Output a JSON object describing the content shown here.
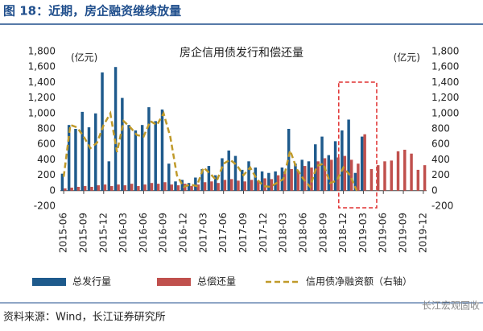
{
  "header": "图 18：近期，房企融资继续放量",
  "source": "资料来源：Wind，长江证券研究所",
  "watermark": "长江宏观固收",
  "chart_data": {
    "type": "bar",
    "title": "房企信用债发行和偿还量",
    "y_label": "(亿元)",
    "y2_label": "(亿元)",
    "categories": [
      "2015-06",
      null,
      null,
      "2015-09",
      null,
      null,
      "2015-12",
      null,
      null,
      "2016-03",
      null,
      null,
      "2016-06",
      null,
      null,
      "2016-09",
      null,
      null,
      "2016-12",
      null,
      null,
      "2017-03",
      null,
      null,
      "2017-06",
      null,
      null,
      "2017-09",
      null,
      null,
      "2017-12",
      null,
      null,
      "2018-03",
      null,
      null,
      "2018-06",
      null,
      null,
      "2018-09",
      null,
      null,
      "2018-12",
      null,
      null,
      "2019-03",
      null,
      null,
      "2019-06",
      null,
      null,
      "2019-09",
      null,
      null,
      "2019-12"
    ],
    "series": [
      {
        "name": "总发行量",
        "color": "#1e5a8c",
        "values": [
          220,
          850,
          800,
          1020,
          820,
          1000,
          1530,
          380,
          1600,
          1200,
          850,
          780,
          850,
          1080,
          900,
          1050,
          350,
          120,
          140,
          100,
          170,
          280,
          320,
          200,
          420,
          520,
          450,
          270,
          380,
          300,
          250,
          230,
          250,
          300,
          800,
          350,
          400,
          380,
          600,
          700,
          460,
          640,
          780,
          920,
          230,
          700,
          null,
          null,
          null,
          null,
          null,
          null,
          null,
          null,
          null
        ]
      },
      {
        "name": "总偿还量",
        "color": "#c0504d",
        "values": [
          30,
          40,
          50,
          60,
          50,
          70,
          80,
          60,
          80,
          70,
          90,
          60,
          80,
          100,
          90,
          110,
          80,
          70,
          90,
          60,
          80,
          110,
          120,
          100,
          140,
          150,
          130,
          120,
          140,
          130,
          160,
          150,
          200,
          250,
          280,
          260,
          320,
          300,
          380,
          420,
          400,
          430,
          450,
          400,
          350,
          730,
          280,
          330,
          380,
          390,
          510,
          530,
          480,
          270,
          330
        ]
      },
      {
        "name": "信用债净融资额（右轴）",
        "color": "#c09a2a",
        "type": "line",
        "axis": "y2",
        "dashed": true,
        "values": [
          180,
          850,
          820,
          700,
          550,
          620,
          850,
          1000,
          500,
          900,
          820,
          720,
          700,
          900,
          850,
          1000,
          700,
          200,
          50,
          80,
          60,
          300,
          220,
          130,
          350,
          400,
          330,
          200,
          300,
          150,
          60,
          50,
          100,
          150,
          520,
          280,
          150,
          50,
          320,
          350,
          100,
          130,
          300,
          200,
          0,
          null,
          null,
          null,
          null,
          null,
          null,
          null,
          null,
          null,
          null
        ]
      }
    ],
    "ylim": [
      -200,
      1800
    ],
    "yticks": [
      -200,
      0,
      200,
      400,
      600,
      800,
      {
        "value": 1000,
        "label": "1,000"
      },
      {
        "value": 1200,
        "label": "1,200"
      },
      {
        "value": 1400,
        "label": "1,400"
      },
      {
        "value": 1600,
        "label": "1,600"
      },
      {
        "value": 1800,
        "label": "1,800"
      }
    ],
    "y2lim": [
      -200,
      1800
    ],
    "y2ticks": [
      -200,
      0,
      200,
      400,
      600,
      800,
      {
        "value": 1000,
        "label": "1,000"
      },
      {
        "value": 1200,
        "label": "1,200"
      },
      {
        "value": 1400,
        "label": "1,400"
      },
      {
        "value": 1600,
        "label": "1,600"
      },
      {
        "value": 1800,
        "label": "1,800"
      }
    ],
    "grid": false,
    "legend": "bottom"
  }
}
